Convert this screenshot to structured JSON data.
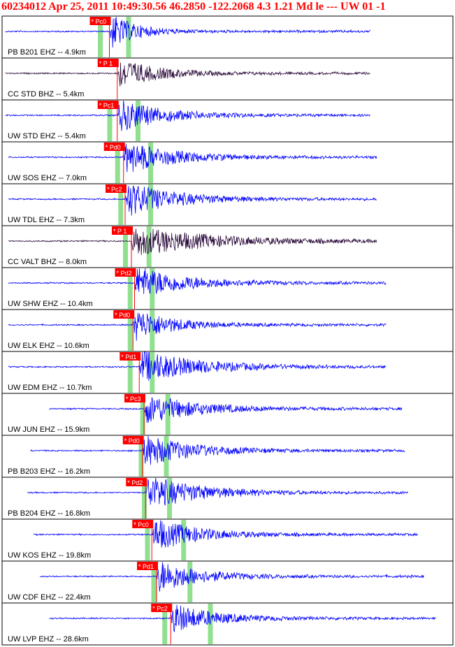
{
  "header": {
    "text": "60234012  Apr 25, 2011  10:49:30.56    46.2850  -122.2068  4.3  1.21  Md le ---  UW 01   -1"
  },
  "chart_data": {
    "type": "line",
    "title": "60234012  Apr 25, 2011  10:49:30.56    46.2850  -122.2068  4.3  1.21  Md le ---  UW 01   -1",
    "colors": {
      "ehz": "#0000ff",
      "bhz": "#2a0a3a",
      "pick_flag": "#ff0000",
      "pick_line": "#ff0000",
      "window": "#90e090",
      "frame": "#000000"
    },
    "traces": [
      {
        "label": "PB B201 EHZ -- 4.9km",
        "channel": "EHZ",
        "pick": "* Pc0",
        "pick_s": 3.3,
        "windows_s": [
          3.0,
          3.9
        ],
        "start_s": 0.0,
        "end_s": 11.6,
        "amplitude": 0.65,
        "decay_s": 0.8
      },
      {
        "label": "CC STD BHZ -- 5.4km",
        "channel": "BHZ",
        "pick": "* P 1",
        "pick_s": 3.55,
        "windows_s": [],
        "start_s": 0.0,
        "end_s": 11.6,
        "amplitude": 0.55,
        "decay_s": 1.2
      },
      {
        "label": "UW STD EHZ -- 5.4km",
        "channel": "EHZ",
        "pick": "* Pc1",
        "pick_s": 3.55,
        "windows_s": [
          3.3,
          4.2
        ],
        "start_s": 0.0,
        "end_s": 11.6,
        "amplitude": 0.6,
        "decay_s": 1.4
      },
      {
        "label": "UW SOS EHZ -- 7.0km",
        "channel": "EHZ",
        "pick": "* Pd0",
        "pick_s": 3.75,
        "windows_s": [
          3.55,
          4.6
        ],
        "start_s": 0.1,
        "end_s": 11.8,
        "amplitude": 0.6,
        "decay_s": 1.5
      },
      {
        "label": "UW TDL EHZ -- 7.3km",
        "channel": "EHZ",
        "pick": "* Pc2",
        "pick_s": 3.8,
        "windows_s": [
          3.65,
          4.6
        ],
        "start_s": 0.1,
        "end_s": 11.8,
        "amplitude": 0.65,
        "decay_s": 1.5
      },
      {
        "label": "CC VALT BHZ -- 8.0km",
        "channel": "BHZ",
        "pick": "* P 1",
        "pick_s": 4.0,
        "windows_s": [
          3.8,
          4.55
        ],
        "start_s": 0.1,
        "end_s": 11.8,
        "amplitude": 0.55,
        "decay_s": 2.4
      },
      {
        "label": "UW SHW EHZ -- 10.4km",
        "channel": "EHZ",
        "pick": "* Pd2",
        "pick_s": 4.1,
        "windows_s": [
          3.95,
          4.65
        ],
        "start_s": 0.1,
        "end_s": 12.1,
        "amplitude": 0.6,
        "decay_s": 1.6
      },
      {
        "label": "UW ELK EHZ -- 10.6km",
        "channel": "EHZ",
        "pick": "* Pd0",
        "pick_s": 4.05,
        "windows_s": [
          3.95,
          4.65
        ],
        "start_s": 0.1,
        "end_s": 12.1,
        "amplitude": 0.6,
        "decay_s": 1.2
      },
      {
        "label": "UW EDM EHZ -- 10.7km",
        "channel": "EHZ",
        "pick": "* Pd1",
        "pick_s": 4.25,
        "windows_s": [
          3.95,
          4.65
        ],
        "start_s": 0.1,
        "end_s": 12.1,
        "amplitude": 0.6,
        "decay_s": 1.8
      },
      {
        "label": "UW JUN EHZ -- 15.9km",
        "channel": "EHZ",
        "pick": "* Pc3",
        "pick_s": 4.4,
        "windows_s": [
          4.35,
          5.15
        ],
        "start_s": 1.4,
        "end_s": 12.6,
        "amplitude": 0.55,
        "decay_s": 1.6
      },
      {
        "label": "PB B203 EHZ -- 16.2km",
        "channel": "EHZ",
        "pick": "* Pd0",
        "pick_s": 4.35,
        "windows_s": [
          4.3,
          5.1
        ],
        "start_s": 0.8,
        "end_s": 12.7,
        "amplitude": 0.6,
        "decay_s": 1.5
      },
      {
        "label": "PB B204 EHZ -- 16.8km",
        "channel": "EHZ",
        "pick": "* Pd2",
        "pick_s": 4.45,
        "windows_s": [
          4.4,
          5.2
        ],
        "start_s": 0.7,
        "end_s": 12.8,
        "amplitude": 0.65,
        "decay_s": 1.6
      },
      {
        "label": "UW KOS EHZ -- 19.8km",
        "channel": "EHZ",
        "pick": "* Pc0",
        "pick_s": 4.65,
        "windows_s": [
          4.5,
          5.65
        ],
        "start_s": 0.9,
        "end_s": 13.1,
        "amplitude": 0.6,
        "decay_s": 1.4
      },
      {
        "label": "UW CDF EHZ -- 22.4km",
        "channel": "EHZ",
        "pick": "* Pd1",
        "pick_s": 4.8,
        "windows_s": [
          4.7,
          5.85
        ],
        "start_s": 1.1,
        "end_s": 13.3,
        "amplitude": 0.6,
        "decay_s": 1.3
      },
      {
        "label": "UW LVP EHZ -- 28.6km",
        "channel": "EHZ",
        "pick": "* Pc2",
        "pick_s": 5.25,
        "windows_s": [
          5.05,
          6.5
        ],
        "start_s": 1.4,
        "end_s": 13.7,
        "amplitude": 0.55,
        "decay_s": 1.3
      }
    ]
  }
}
